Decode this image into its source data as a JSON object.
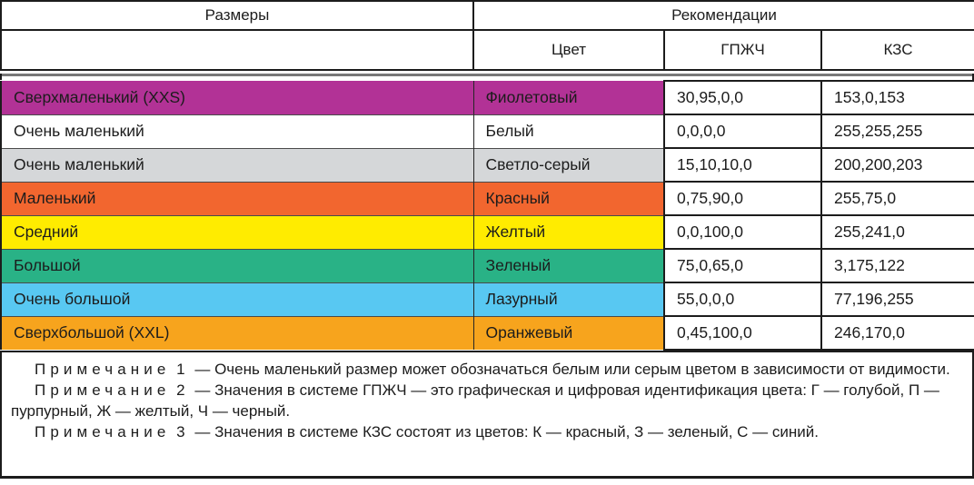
{
  "header": {
    "col_sizes": "Размеры",
    "col_recommendations": "Рекомендации",
    "col_color": "Цвет",
    "col_gpzh": "ГПЖЧ",
    "col_kzs": "КЗС"
  },
  "rows": [
    {
      "size": "Сверхмаленький (XXS)",
      "color_name": "Фиолетовый",
      "gpzh": "30,95,0,0",
      "kzs": "153,0,153",
      "bg": "#b23296"
    },
    {
      "size": "Очень маленький",
      "color_name": "Белый",
      "gpzh": "0,0,0,0",
      "kzs": "255,255,255",
      "bg": "#ffffff"
    },
    {
      "size": "Очень маленький",
      "color_name": "Светло-серый",
      "gpzh": "15,10,10,0",
      "kzs": "200,200,203",
      "bg": "#d5d7d9"
    },
    {
      "size": "Маленький",
      "color_name": "Красный",
      "gpzh": "0,75,90,0",
      "kzs": "255,75,0",
      "bg": "#f2662f"
    },
    {
      "size": "Средний",
      "color_name": "Желтый",
      "gpzh": "0,0,100,0",
      "kzs": "255,241,0",
      "bg": "#ffec00"
    },
    {
      "size": "Большой",
      "color_name": "Зеленый",
      "gpzh": "75,0,65,0",
      "kzs": "3,175,122",
      "bg": "#29b286"
    },
    {
      "size": "Очень большой",
      "color_name": "Лазурный",
      "gpzh": "55,0,0,0",
      "kzs": "77,196,255",
      "bg": "#58c8f2"
    },
    {
      "size": "Сверхбольшой (XXL)",
      "color_name": "Оранжевый",
      "gpzh": "0,45,100,0",
      "kzs": "246,170,0",
      "bg": "#f7a41d"
    }
  ],
  "notes": [
    {
      "label": "Примечание",
      "number": "1",
      "text": "— Очень маленький размер может обозначаться белым или серым цветом в зависимости от видимости."
    },
    {
      "label": "Примечание",
      "number": "2",
      "text": "— Значения в системе ГПЖЧ — это графическая и цифровая идентификация цвета: Г — голубой, П — пурпурный, Ж — желтый, Ч — черный."
    },
    {
      "label": "Примечание",
      "number": "3",
      "text": "— Значения в системе КЗС состоят из цветов: К — красный, З — зеленый, С — синий."
    }
  ]
}
